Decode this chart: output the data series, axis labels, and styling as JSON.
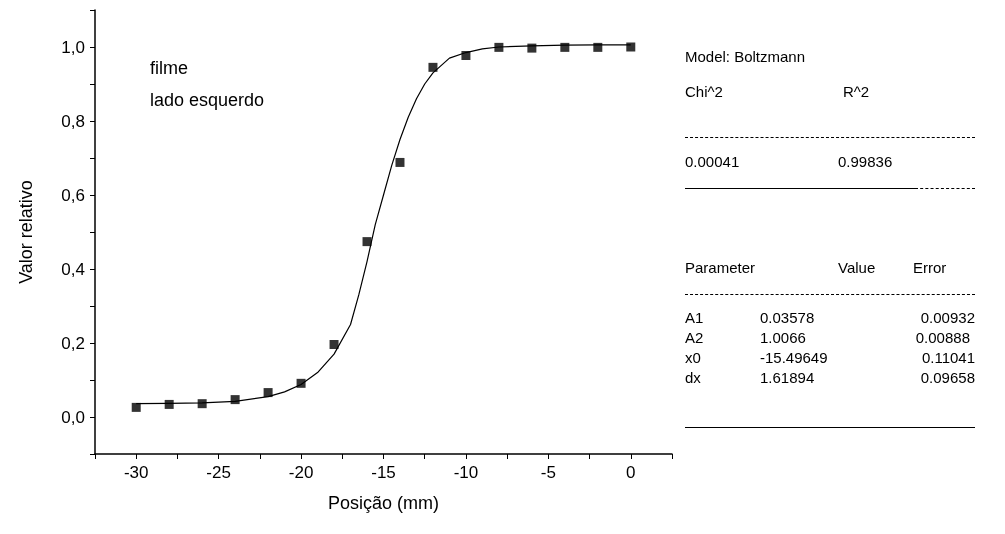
{
  "chart_data": {
    "type": "scatter",
    "xlabel": "Posição (mm)",
    "ylabel": "Valor relativo",
    "marker": "square",
    "grid": false,
    "xlim": [
      -32.5,
      2.5
    ],
    "ylim": [
      -0.1,
      1.1
    ],
    "xticks": [
      {
        "value": -32.5,
        "label": null
      },
      -30,
      {
        "value": -27.5,
        "label": null
      },
      -25,
      {
        "value": -22.5,
        "label": null
      },
      -20,
      {
        "value": -17.5,
        "label": null
      },
      -15,
      {
        "value": -12.5,
        "label": null
      },
      -10,
      {
        "value": -7.5,
        "label": null
      },
      -5,
      {
        "value": -2.5,
        "label": null
      },
      0,
      {
        "value": 2.5,
        "label": null
      }
    ],
    "yticks": [
      {
        "value": -0.1,
        "label": null
      },
      {
        "value": 0,
        "label": "0,0"
      },
      {
        "value": 0.1,
        "label": null
      },
      {
        "value": 0.2,
        "label": "0,2"
      },
      {
        "value": 0.3,
        "label": null
      },
      {
        "value": 0.4,
        "label": "0,4"
      },
      {
        "value": 0.5,
        "label": null
      },
      {
        "value": 0.6,
        "label": "0,6"
      },
      {
        "value": 0.7,
        "label": null
      },
      {
        "value": 0.8,
        "label": "0,8"
      },
      {
        "value": 0.9,
        "label": null
      },
      {
        "value": 1,
        "label": "1,0"
      },
      {
        "value": 1.1,
        "label": null
      }
    ],
    "series": [
      {
        "color": "#000000",
        "x": [
          -30,
          -28,
          -26,
          -24,
          -22,
          -20,
          -18,
          -16,
          -14,
          -12,
          -10,
          -8,
          -6,
          -4,
          -2,
          0
        ],
        "values": [
          0.026,
          0.034,
          0.036,
          0.047,
          0.066,
          0.091,
          0.196,
          0.474,
          0.688,
          0.945,
          0.977,
          0.999,
          0.997,
          0.999,
          0.999,
          1.0
        ]
      },
      {
        "type": "line",
        "color": "#000000",
        "line_style": "solid",
        "marker": "none",
        "x": [
          -30,
          -28,
          -26,
          -24,
          -22,
          -21,
          -20,
          -19,
          -18,
          -17,
          -16.5,
          -16,
          -15.5,
          -15,
          -14.5,
          -14,
          -13.5,
          -13,
          -12.5,
          -12,
          -11,
          -10,
          -9,
          -8,
          -6,
          -4,
          -2,
          0
        ],
        "values": [
          0.036,
          0.037,
          0.038,
          0.042,
          0.055,
          0.068,
          0.088,
          0.12,
          0.17,
          0.25,
          0.33,
          0.42,
          0.52,
          0.6,
          0.68,
          0.75,
          0.81,
          0.86,
          0.9,
          0.93,
          0.97,
          0.985,
          0.995,
          1.0,
          1.003,
          1.005,
          1.006,
          1.006
        ]
      }
    ],
    "annotations": [
      "filme",
      "lado esquerdo",
      "Model: Boltzmann",
      "Chi^2",
      "R^2",
      "0.00041",
      "0.99836",
      "Parameter",
      "Value",
      "Error",
      "A1",
      "0.03578",
      "0.00932",
      "A2",
      "1.0066",
      "0.00888",
      "x0",
      "-15.49649",
      "0.11041",
      "dx",
      "1.61894",
      "0.09658"
    ]
  }
}
